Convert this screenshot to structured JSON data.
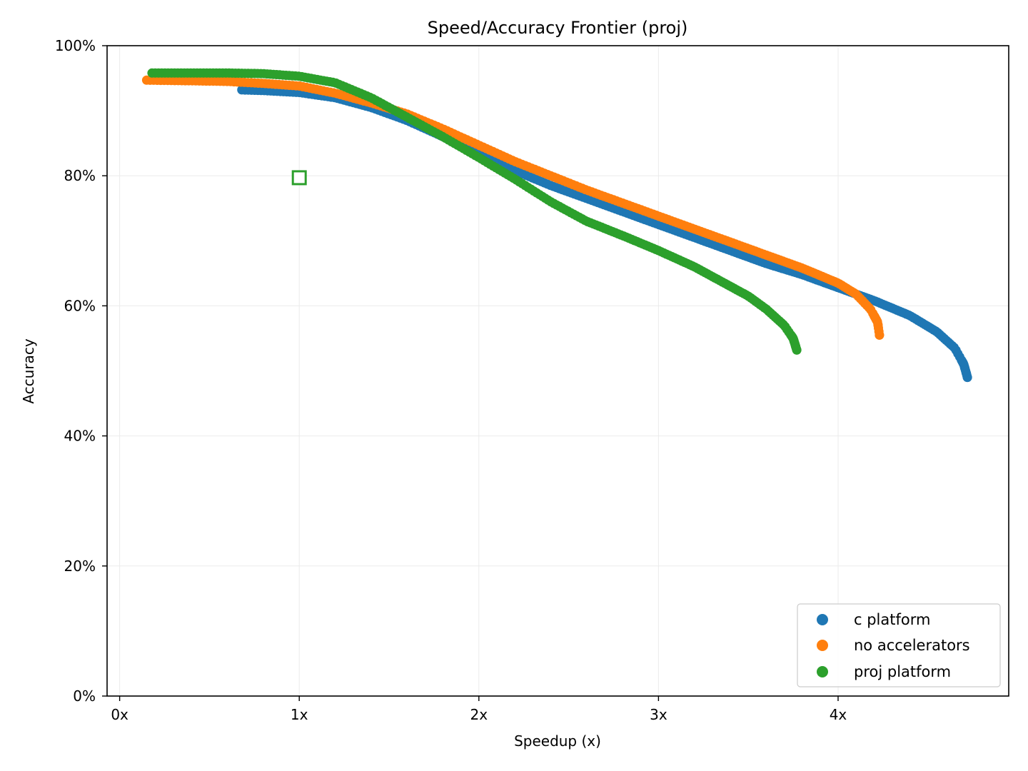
{
  "chart_data": {
    "type": "scatter",
    "title": "Speed/Accuracy Frontier (proj)",
    "xlabel": "Speedup (x)",
    "ylabel": "Accuracy",
    "xlim": [
      -0.07,
      4.95
    ],
    "ylim": [
      0,
      100
    ],
    "x_ticks": [
      0,
      1,
      2,
      3,
      4
    ],
    "x_tick_labels": [
      "0x",
      "1x",
      "2x",
      "3x",
      "4x"
    ],
    "y_ticks": [
      0,
      20,
      40,
      60,
      80,
      100
    ],
    "y_tick_labels": [
      "0%",
      "20%",
      "40%",
      "60%",
      "80%",
      "100%"
    ],
    "grid": true,
    "legend_position": "lower-right",
    "series": [
      {
        "name": "c platform",
        "color": "#1f77b4",
        "anchors": [
          [
            0.68,
            93.2
          ],
          [
            0.8,
            93.1
          ],
          [
            1.0,
            92.8
          ],
          [
            1.2,
            92.0
          ],
          [
            1.4,
            90.5
          ],
          [
            1.6,
            88.5
          ],
          [
            1.8,
            86.0
          ],
          [
            2.0,
            83.3
          ],
          [
            2.2,
            80.8
          ],
          [
            2.4,
            78.5
          ],
          [
            2.6,
            76.5
          ],
          [
            2.8,
            74.5
          ],
          [
            3.0,
            72.5
          ],
          [
            3.2,
            70.5
          ],
          [
            3.4,
            68.5
          ],
          [
            3.6,
            66.5
          ],
          [
            3.8,
            64.8
          ],
          [
            4.0,
            62.8
          ],
          [
            4.2,
            60.8
          ],
          [
            4.4,
            58.5
          ],
          [
            4.55,
            56.0
          ],
          [
            4.65,
            53.5
          ],
          [
            4.7,
            51.0
          ],
          [
            4.72,
            49.0
          ]
        ],
        "count": 260
      },
      {
        "name": "no accelerators",
        "color": "#ff7f0e",
        "anchors": [
          [
            0.15,
            94.7
          ],
          [
            0.4,
            94.6
          ],
          [
            0.6,
            94.5
          ],
          [
            0.8,
            94.2
          ],
          [
            1.0,
            93.8
          ],
          [
            1.2,
            92.7
          ],
          [
            1.4,
            91.2
          ],
          [
            1.6,
            89.5
          ],
          [
            1.8,
            87.2
          ],
          [
            2.0,
            84.7
          ],
          [
            2.2,
            82.2
          ],
          [
            2.4,
            80.0
          ],
          [
            2.6,
            77.8
          ],
          [
            2.8,
            75.8
          ],
          [
            3.0,
            73.8
          ],
          [
            3.2,
            71.8
          ],
          [
            3.4,
            69.8
          ],
          [
            3.6,
            67.8
          ],
          [
            3.8,
            65.8
          ],
          [
            4.0,
            63.5
          ],
          [
            4.1,
            61.8
          ],
          [
            4.18,
            59.5
          ],
          [
            4.22,
            57.5
          ],
          [
            4.23,
            55.5
          ]
        ],
        "count": 240
      },
      {
        "name": "proj platform",
        "color": "#2ca02c",
        "anchors": [
          [
            0.18,
            95.8
          ],
          [
            0.4,
            95.8
          ],
          [
            0.6,
            95.8
          ],
          [
            0.8,
            95.7
          ],
          [
            1.0,
            95.3
          ],
          [
            1.2,
            94.3
          ],
          [
            1.4,
            92.0
          ],
          [
            1.6,
            89.0
          ],
          [
            1.8,
            86.0
          ],
          [
            2.0,
            82.8
          ],
          [
            2.2,
            79.5
          ],
          [
            2.4,
            76.0
          ],
          [
            2.6,
            73.0
          ],
          [
            2.8,
            70.8
          ],
          [
            3.0,
            68.5
          ],
          [
            3.2,
            66.0
          ],
          [
            3.4,
            63.0
          ],
          [
            3.5,
            61.5
          ],
          [
            3.6,
            59.5
          ],
          [
            3.7,
            57.0
          ],
          [
            3.75,
            55.0
          ],
          [
            3.77,
            53.2
          ]
        ],
        "count": 230
      }
    ],
    "reference_point": {
      "x": 1.0,
      "y": 79.7,
      "color": "#2ca02c",
      "marker": "hollow-square"
    }
  }
}
